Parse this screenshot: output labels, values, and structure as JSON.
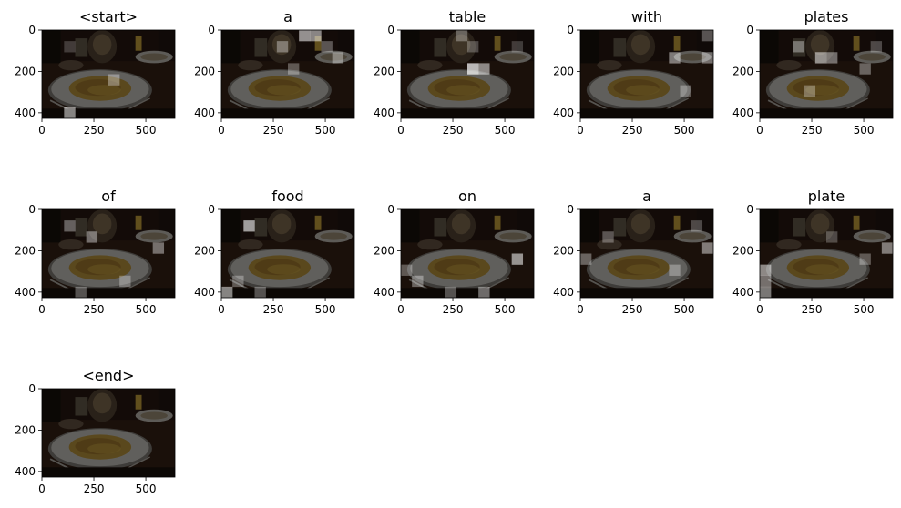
{
  "chart_data": {
    "type": "heatmap",
    "xlim": [
      0,
      640
    ],
    "ylim": [
      427,
      0
    ],
    "x_ticks": [
      0,
      250,
      500
    ],
    "y_ticks": [
      0,
      200,
      400
    ],
    "x_tick_labels": [
      "0",
      "250",
      "500"
    ],
    "y_tick_labels": [
      "0",
      "200",
      "400"
    ],
    "panels": [
      {
        "title": "<start>",
        "highlights": [
          [
            2,
            7,
            0.5
          ],
          [
            6,
            4,
            0.35
          ],
          [
            2,
            1,
            0.2
          ]
        ]
      },
      {
        "title": "a",
        "highlights": [
          [
            7,
            0,
            0.55
          ],
          [
            8,
            0,
            0.5
          ],
          [
            5,
            1,
            0.35
          ],
          [
            9,
            1,
            0.3
          ],
          [
            10,
            2,
            0.35
          ],
          [
            6,
            3,
            0.3
          ]
        ]
      },
      {
        "title": "table",
        "highlights": [
          [
            6,
            3,
            0.7
          ],
          [
            7,
            3,
            0.5
          ],
          [
            5,
            0,
            0.3
          ],
          [
            6,
            1,
            0.25
          ],
          [
            10,
            1,
            0.2
          ]
        ]
      },
      {
        "title": "with",
        "highlights": [
          [
            8,
            2,
            0.45
          ],
          [
            11,
            2,
            0.4
          ],
          [
            11,
            0,
            0.3
          ],
          [
            9,
            5,
            0.3
          ]
        ]
      },
      {
        "title": "plates",
        "highlights": [
          [
            5,
            2,
            0.5
          ],
          [
            6,
            2,
            0.4
          ],
          [
            3,
            1,
            0.35
          ],
          [
            9,
            3,
            0.35
          ],
          [
            10,
            1,
            0.25
          ],
          [
            4,
            5,
            0.3
          ]
        ]
      },
      {
        "title": "of",
        "highlights": [
          [
            2,
            1,
            0.35
          ],
          [
            4,
            2,
            0.4
          ],
          [
            10,
            3,
            0.4
          ],
          [
            7,
            6,
            0.3
          ],
          [
            3,
            7,
            0.3
          ]
        ]
      },
      {
        "title": "food",
        "highlights": [
          [
            2,
            1,
            0.6
          ],
          [
            0,
            7,
            0.5
          ],
          [
            1,
            6,
            0.3
          ],
          [
            3,
            7,
            0.3
          ]
        ]
      },
      {
        "title": "on",
        "highlights": [
          [
            10,
            4,
            0.55
          ],
          [
            0,
            5,
            0.3
          ],
          [
            1,
            6,
            0.35
          ],
          [
            7,
            7,
            0.4
          ],
          [
            4,
            7,
            0.3
          ]
        ]
      },
      {
        "title": "a",
        "highlights": [
          [
            2,
            2,
            0.3
          ],
          [
            11,
            3,
            0.45
          ],
          [
            10,
            1,
            0.25
          ],
          [
            0,
            4,
            0.35
          ],
          [
            8,
            5,
            0.3
          ]
        ]
      },
      {
        "title": "plate",
        "highlights": [
          [
            0,
            5,
            0.5
          ],
          [
            0,
            6,
            0.4
          ],
          [
            0,
            7,
            0.45
          ],
          [
            11,
            3,
            0.45
          ],
          [
            9,
            4,
            0.3
          ],
          [
            6,
            2,
            0.25
          ]
        ]
      },
      {
        "title": "<end>",
        "highlights": []
      }
    ]
  },
  "colors": {
    "plate": "#d6d3cc",
    "plate_rim": "#8a867f",
    "food": "#c8a040",
    "food_dark": "#9a6d24",
    "table": "#3a2418",
    "dim_overlay": "#000000"
  }
}
